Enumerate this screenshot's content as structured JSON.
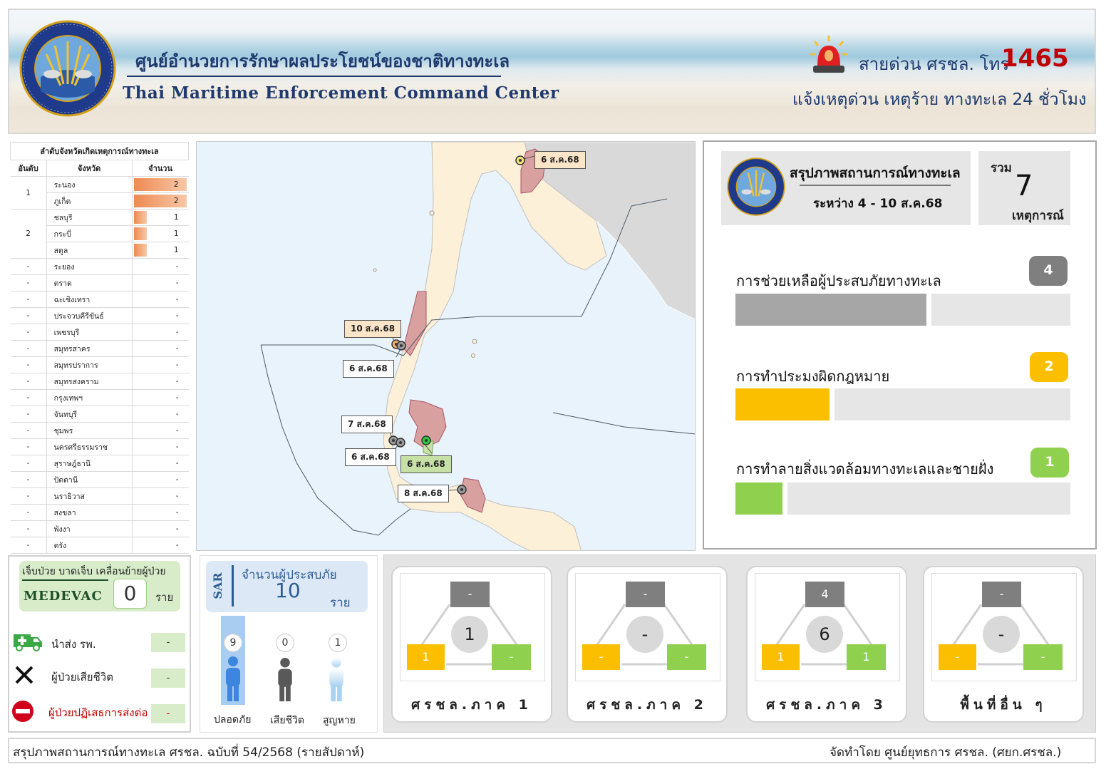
{
  "header": {
    "title_th": "ศูนย์อำนวยการรักษาผลประโยชน์ของชาติทางทะเล",
    "title_en": "Thai Maritime Enforcement Command Center",
    "logo_ring_text": "THAI MARITIME ENFORCEMENT COMMAND CENTER",
    "hotline_label": "สายด่วน ศรชล. โทร",
    "hotline_number": "1465",
    "hotline_sub": "แจ้งเหตุด่วน เหตุร้าย ทางทะเล 24 ชั่วโมง"
  },
  "ranking": {
    "title": "ลำดับจังหวัดเกิดเหตุการณ์ทางทะเล",
    "col_rank": "อันดับ",
    "col_province": "จังหวัด",
    "col_count": "จำนวน",
    "max_count": 2,
    "ranked": [
      {
        "rank": "1",
        "rows": [
          {
            "province": "ระนอง",
            "count": 2
          },
          {
            "province": "ภูเก็ต",
            "count": 2
          }
        ]
      },
      {
        "rank": "2",
        "rows": [
          {
            "province": "ชลบุรี",
            "count": 1
          },
          {
            "province": "กระบี่",
            "count": 1
          },
          {
            "province": "สตูล",
            "count": 1
          }
        ]
      }
    ],
    "unranked": [
      {
        "rank": "-",
        "province": "ระยอง",
        "count": "-"
      },
      {
        "rank": "-",
        "province": "ตราด",
        "count": "-"
      },
      {
        "rank": "-",
        "province": "ฉะเชิงเทรา",
        "count": "-"
      },
      {
        "rank": "-",
        "province": "ประจวบคีรีขันธ์",
        "count": "-"
      },
      {
        "rank": "-",
        "province": "เพชรบุรี",
        "count": "-"
      },
      {
        "rank": "-",
        "province": "สมุทรสาคร",
        "count": "-"
      },
      {
        "rank": "-",
        "province": "สมุทรปราการ",
        "count": "-"
      },
      {
        "rank": "-",
        "province": "สมุทรสงคราม",
        "count": "-"
      },
      {
        "rank": "-",
        "province": "กรุงเทพฯ",
        "count": "-"
      },
      {
        "rank": "-",
        "province": "จันทบุรี",
        "count": "-"
      },
      {
        "rank": "-",
        "province": "ชุมพร",
        "count": "-"
      },
      {
        "rank": "-",
        "province": "นครศรีธรรมราช",
        "count": "-"
      },
      {
        "rank": "-",
        "province": "สุราษฎ์ธานี",
        "count": "-"
      },
      {
        "rank": "-",
        "province": "ปัตตานี",
        "count": "-"
      },
      {
        "rank": "-",
        "province": "นราธิวาส",
        "count": "-"
      },
      {
        "rank": "-",
        "province": "สงขลา",
        "count": "-"
      },
      {
        "rank": "-",
        "province": "พังงา",
        "count": "-"
      },
      {
        "rank": "-",
        "province": "ตรัง",
        "count": "-"
      }
    ]
  },
  "map": {
    "labels": [
      "6 ส.ค.68",
      "10 ส.ค.68",
      "6 ส.ค.68",
      "7 ส.ค.68",
      "6 ส.ค.68",
      "6 ส.ค.68",
      "8 ส.ค.68"
    ]
  },
  "summary": {
    "title": "สรุปภาพสถานการณ์ทางทะเล",
    "period": "ระหว่าง  4 - 10 ส.ค.68",
    "total_label": "รวม",
    "total_value": "7",
    "total_unit": "เหตุการณ์",
    "categories": [
      {
        "label": "การช่วยเหลือผู้ประสบภัยทางทะเล",
        "value": "4",
        "fraction": 0.57,
        "color": "#7f7f7f",
        "fill": "#a6a6a6"
      },
      {
        "label": "การทำประมงผิดกฎหมาย",
        "value": "2",
        "fraction": 0.28,
        "color": "#fbbf00",
        "fill": "#fbbf00"
      },
      {
        "label": "การทำลายสิ่งแวดล้อมทางทะเลและชายฝั่ง",
        "value": "1",
        "fraction": 0.14,
        "color": "#8fd14f",
        "fill": "#8fd14f"
      }
    ]
  },
  "medevac": {
    "desc": "เจ็บป่วย บาดเจ็บ เคลื่อนย้ายผู้ป่วย",
    "title": "MEDEVAC",
    "count": "0",
    "unit": "ราย",
    "rows": [
      {
        "label": "นำส่ง รพ.",
        "value": "-",
        "icon": "ambulance-icon"
      },
      {
        "label": "ผู้ป่วยเสียชีวิต",
        "value": "-",
        "icon": "x-icon"
      },
      {
        "label": "ผู้ป่วยปฏิเสธการส่งต่อ",
        "value": "-",
        "icon": "no-entry-icon"
      }
    ]
  },
  "sar": {
    "tag": "SAR",
    "title": "จำนวนผู้ประสบภัย",
    "value": "10",
    "unit": "ราย",
    "people": [
      {
        "label": "ปลอดภัย",
        "value": "9",
        "color": "#3d86e0"
      },
      {
        "label": "เสียชีวิต",
        "value": "0",
        "color": "#595959"
      },
      {
        "label": "สูญหาย",
        "value": "1",
        "color": "#a9d2f3"
      }
    ]
  },
  "regions": [
    {
      "name": "ศรชล.ภาค 1",
      "top": "-",
      "center": "1",
      "left": "1",
      "right": "-"
    },
    {
      "name": "ศรชล.ภาค 2",
      "top": "-",
      "center": "-",
      "left": "-",
      "right": "-"
    },
    {
      "name": "ศรชล.ภาค 3",
      "top": "4",
      "center": "6",
      "left": "1",
      "right": "1"
    },
    {
      "name": "พื้นที่อื่น ๆ",
      "top": "-",
      "center": "-",
      "left": "-",
      "right": "-"
    }
  ],
  "footer": {
    "left": "สรุปภาพสถานการณ์ทางทะเล ศรชล. ฉบับที่ 54/2568 (รายสัปดาห์)",
    "right": "จัดทำโดย ศูนย์ยุทธการ ศรชล. (ศยก.ศรชล.)"
  }
}
